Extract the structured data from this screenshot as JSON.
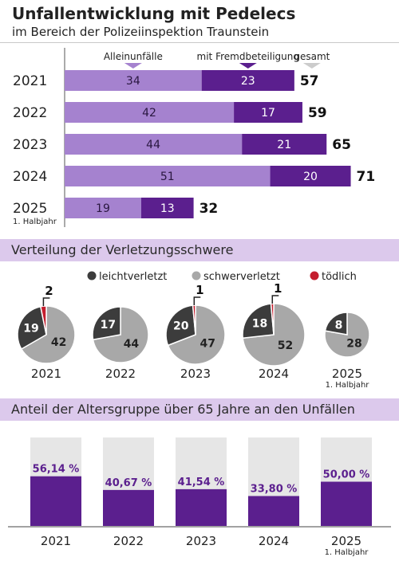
{
  "title": "Unfallentwicklung mit Pedelecs",
  "subtitle": "im Bereich der Polizeiinspektion Traunstein",
  "colors": {
    "light_purple": "#a582cf",
    "dark_purple": "#5b1f8e",
    "band": "#dcc9ec",
    "dark_gray": "#3c3c3c",
    "light_gray": "#a8a8a8",
    "red": "#c41e2e",
    "bar_bg": "#e6e6e6"
  },
  "chart_data": [
    {
      "type": "bar",
      "orientation": "horizontal",
      "stacked": true,
      "categories": [
        "2021",
        "2022",
        "2023",
        "2024",
        "2025"
      ],
      "category_sublabels": [
        "",
        "",
        "",
        "",
        "1. Halbjahr"
      ],
      "series": [
        {
          "name": "Alleinunfälle",
          "values": [
            34,
            42,
            44,
            51,
            19
          ]
        },
        {
          "name": "mit Fremdbeteiligung",
          "values": [
            23,
            17,
            21,
            20,
            13
          ]
        }
      ],
      "totals_label": "gesamt",
      "totals": [
        57,
        59,
        65,
        71,
        32
      ],
      "xlim": [
        0,
        72
      ]
    },
    {
      "type": "pie",
      "title": "Verteilung der Verletzungsschwere",
      "legend": [
        "leichtverletzt",
        "schwerverletzt",
        "tödlich"
      ],
      "legend_position": "top",
      "pies": [
        {
          "label": "2021",
          "sublabel": "",
          "values": [
            19,
            42,
            2
          ]
        },
        {
          "label": "2022",
          "sublabel": "",
          "values": [
            17,
            44,
            0
          ]
        },
        {
          "label": "2023",
          "sublabel": "",
          "values": [
            20,
            47,
            1
          ]
        },
        {
          "label": "2024",
          "sublabel": "",
          "values": [
            18,
            52,
            1
          ]
        },
        {
          "label": "2025",
          "sublabel": "1. Halbjahr",
          "values": [
            8,
            28,
            0
          ]
        }
      ]
    },
    {
      "type": "bar",
      "title": "Anteil der Altersgruppe über 65 Jahre an den Unfällen",
      "categories": [
        "2021",
        "2022",
        "2023",
        "2024",
        "2025"
      ],
      "category_sublabels": [
        "",
        "",
        "",
        "",
        "1. Halbjahr"
      ],
      "values": [
        56.14,
        40.67,
        41.54,
        33.8,
        50.0
      ],
      "value_labels": [
        "56,14 %",
        "40,67 %",
        "41,54 %",
        "33,80 %",
        "50,00 %"
      ],
      "ylim": [
        0,
        100
      ]
    }
  ]
}
